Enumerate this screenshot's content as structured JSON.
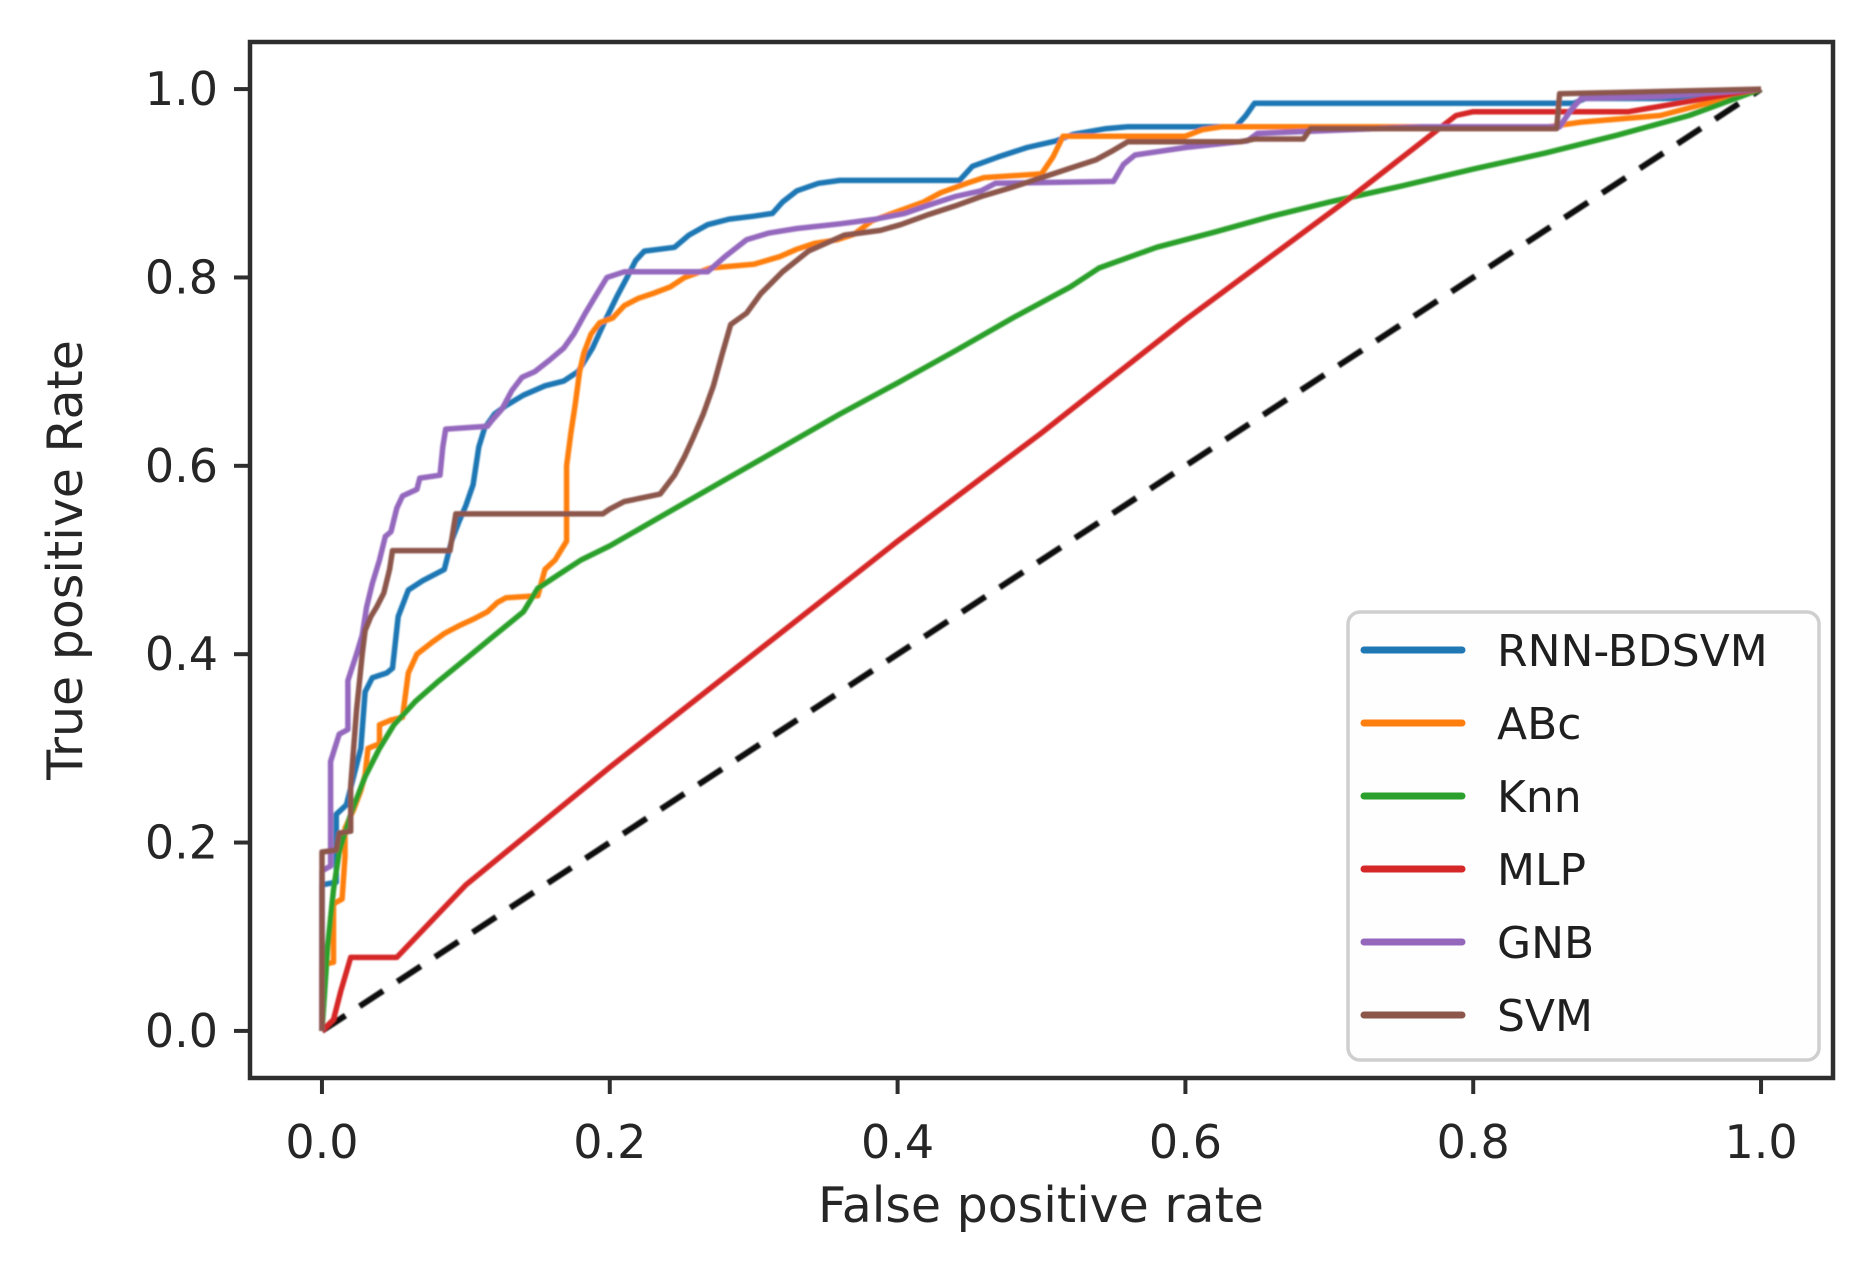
{
  "figure": {
    "xlabel": "False positive rate",
    "ylabel": "True positive Rate",
    "x_tick_labels": [
      "0.0",
      "0.2",
      "0.4",
      "0.6",
      "0.8",
      "1.0"
    ],
    "y_tick_labels": [
      "0.0",
      "0.2",
      "0.4",
      "0.6",
      "0.8",
      "1.0"
    ]
  },
  "legend": {
    "entries": [
      {
        "label": "RNN-BDSVM",
        "color": "#1f77b4",
        "style": "solid"
      },
      {
        "label": "ABc",
        "color": "#ff7f0e",
        "style": "solid"
      },
      {
        "label": "Knn",
        "color": "#2ca02c",
        "style": "solid"
      },
      {
        "label": "MLP",
        "color": "#d62728",
        "style": "solid"
      },
      {
        "label": "GNB",
        "color": "#9467bd",
        "style": "solid"
      },
      {
        "label": "SVM",
        "color": "#8c564b",
        "style": "solid"
      }
    ]
  },
  "chart_data": {
    "type": "line",
    "title": "",
    "xlabel": "False positive rate",
    "ylabel": "True positive Rate",
    "xlim": [
      -0.05,
      1.05
    ],
    "ylim": [
      -0.05,
      1.05
    ],
    "x_ticks": [
      0.0,
      0.2,
      0.4,
      0.6,
      0.8,
      1.0
    ],
    "y_ticks": [
      0.0,
      0.2,
      0.4,
      0.6,
      0.8,
      1.0
    ],
    "grid": false,
    "legend_position": "lower right",
    "series": [
      {
        "name": "chance-diagonal",
        "color": "#111111",
        "style": "dashed",
        "in_legend": false,
        "points": [
          [
            0,
            0
          ],
          [
            1,
            1
          ]
        ]
      },
      {
        "name": "RNN-BDSVM",
        "color": "#1f77b4",
        "style": "solid",
        "in_legend": true,
        "points": [
          [
            0,
            0
          ],
          [
            0,
            0.155
          ],
          [
            0.01,
            0.158
          ],
          [
            0.01,
            0.23
          ],
          [
            0.017,
            0.24
          ],
          [
            0.022,
            0.27
          ],
          [
            0.027,
            0.3
          ],
          [
            0.03,
            0.36
          ],
          [
            0.035,
            0.375
          ],
          [
            0.045,
            0.38
          ],
          [
            0.049,
            0.385
          ],
          [
            0.053,
            0.44
          ],
          [
            0.06,
            0.468
          ],
          [
            0.07,
            0.478
          ],
          [
            0.085,
            0.49
          ],
          [
            0.09,
            0.52
          ],
          [
            0.095,
            0.54
          ],
          [
            0.1,
            0.558
          ],
          [
            0.105,
            0.58
          ],
          [
            0.109,
            0.62
          ],
          [
            0.113,
            0.64
          ],
          [
            0.12,
            0.655
          ],
          [
            0.128,
            0.664
          ],
          [
            0.14,
            0.675
          ],
          [
            0.155,
            0.685
          ],
          [
            0.168,
            0.69
          ],
          [
            0.178,
            0.7
          ],
          [
            0.188,
            0.725
          ],
          [
            0.197,
            0.755
          ],
          [
            0.205,
            0.78
          ],
          [
            0.212,
            0.8
          ],
          [
            0.218,
            0.818
          ],
          [
            0.224,
            0.828
          ],
          [
            0.245,
            0.832
          ],
          [
            0.255,
            0.845
          ],
          [
            0.268,
            0.856
          ],
          [
            0.283,
            0.862
          ],
          [
            0.3,
            0.865
          ],
          [
            0.313,
            0.868
          ],
          [
            0.32,
            0.88
          ],
          [
            0.33,
            0.892
          ],
          [
            0.345,
            0.9
          ],
          [
            0.36,
            0.903
          ],
          [
            0.443,
            0.903
          ],
          [
            0.452,
            0.918
          ],
          [
            0.47,
            0.928
          ],
          [
            0.49,
            0.938
          ],
          [
            0.51,
            0.945
          ],
          [
            0.522,
            0.952
          ],
          [
            0.545,
            0.958
          ],
          [
            0.56,
            0.96
          ],
          [
            0.635,
            0.96
          ],
          [
            0.642,
            0.972
          ],
          [
            0.648,
            0.985
          ],
          [
            0.87,
            0.985
          ],
          [
            0.878,
            0.99
          ],
          [
            0.955,
            0.99
          ],
          [
            1,
            1
          ]
        ]
      },
      {
        "name": "ABc",
        "color": "#ff7f0e",
        "style": "solid",
        "in_legend": true,
        "points": [
          [
            0,
            0
          ],
          [
            0,
            0.07
          ],
          [
            0.008,
            0.073
          ],
          [
            0.008,
            0.135
          ],
          [
            0.014,
            0.14
          ],
          [
            0.016,
            0.185
          ],
          [
            0.016,
            0.215
          ],
          [
            0.022,
            0.235
          ],
          [
            0.027,
            0.255
          ],
          [
            0.03,
            0.272
          ],
          [
            0.032,
            0.3
          ],
          [
            0.04,
            0.305
          ],
          [
            0.04,
            0.325
          ],
          [
            0.048,
            0.33
          ],
          [
            0.056,
            0.333
          ],
          [
            0.06,
            0.38
          ],
          [
            0.066,
            0.4
          ],
          [
            0.076,
            0.412
          ],
          [
            0.085,
            0.422
          ],
          [
            0.095,
            0.43
          ],
          [
            0.105,
            0.437
          ],
          [
            0.115,
            0.445
          ],
          [
            0.122,
            0.455
          ],
          [
            0.128,
            0.46
          ],
          [
            0.15,
            0.462
          ],
          [
            0.155,
            0.49
          ],
          [
            0.162,
            0.5
          ],
          [
            0.166,
            0.51
          ],
          [
            0.17,
            0.52
          ],
          [
            0.17,
            0.6
          ],
          [
            0.173,
            0.635
          ],
          [
            0.176,
            0.665
          ],
          [
            0.179,
            0.7
          ],
          [
            0.182,
            0.72
          ],
          [
            0.187,
            0.74
          ],
          [
            0.193,
            0.752
          ],
          [
            0.202,
            0.757
          ],
          [
            0.21,
            0.77
          ],
          [
            0.22,
            0.778
          ],
          [
            0.23,
            0.783
          ],
          [
            0.242,
            0.79
          ],
          [
            0.252,
            0.8
          ],
          [
            0.27,
            0.81
          ],
          [
            0.3,
            0.814
          ],
          [
            0.318,
            0.822
          ],
          [
            0.33,
            0.83
          ],
          [
            0.342,
            0.836
          ],
          [
            0.358,
            0.84
          ],
          [
            0.37,
            0.846
          ],
          [
            0.382,
            0.86
          ],
          [
            0.4,
            0.87
          ],
          [
            0.418,
            0.88
          ],
          [
            0.43,
            0.89
          ],
          [
            0.448,
            0.9
          ],
          [
            0.46,
            0.906
          ],
          [
            0.5,
            0.91
          ],
          [
            0.508,
            0.928
          ],
          [
            0.515,
            0.95
          ],
          [
            0.6,
            0.95
          ],
          [
            0.612,
            0.957
          ],
          [
            0.625,
            0.96
          ],
          [
            0.852,
            0.96
          ],
          [
            0.875,
            0.965
          ],
          [
            0.93,
            0.972
          ],
          [
            1,
            1
          ]
        ]
      },
      {
        "name": "Knn",
        "color": "#2ca02c",
        "style": "solid",
        "in_legend": true,
        "points": [
          [
            0,
            0
          ],
          [
            0.004,
            0.09
          ],
          [
            0.008,
            0.15
          ],
          [
            0.012,
            0.19
          ],
          [
            0.02,
            0.23
          ],
          [
            0.03,
            0.27
          ],
          [
            0.04,
            0.3
          ],
          [
            0.05,
            0.325
          ],
          [
            0.065,
            0.35
          ],
          [
            0.08,
            0.37
          ],
          [
            0.1,
            0.395
          ],
          [
            0.12,
            0.42
          ],
          [
            0.14,
            0.445
          ],
          [
            0.15,
            0.47
          ],
          [
            0.165,
            0.485
          ],
          [
            0.18,
            0.5
          ],
          [
            0.2,
            0.515
          ],
          [
            0.24,
            0.55
          ],
          [
            0.28,
            0.585
          ],
          [
            0.32,
            0.62
          ],
          [
            0.36,
            0.655
          ],
          [
            0.4,
            0.688
          ],
          [
            0.44,
            0.722
          ],
          [
            0.48,
            0.757
          ],
          [
            0.52,
            0.79
          ],
          [
            0.54,
            0.81
          ],
          [
            0.58,
            0.832
          ],
          [
            0.62,
            0.848
          ],
          [
            0.66,
            0.865
          ],
          [
            0.7,
            0.88
          ],
          [
            0.75,
            0.897
          ],
          [
            0.8,
            0.915
          ],
          [
            0.85,
            0.932
          ],
          [
            0.9,
            0.951
          ],
          [
            0.95,
            0.972
          ],
          [
            1,
            1
          ]
        ]
      },
      {
        "name": "MLP",
        "color": "#d62728",
        "style": "solid",
        "in_legend": true,
        "points": [
          [
            0,
            0
          ],
          [
            0.008,
            0.012
          ],
          [
            0.013,
            0.042
          ],
          [
            0.02,
            0.078
          ],
          [
            0.052,
            0.078
          ],
          [
            0.1,
            0.155
          ],
          [
            0.2,
            0.28
          ],
          [
            0.3,
            0.4
          ],
          [
            0.4,
            0.52
          ],
          [
            0.5,
            0.635
          ],
          [
            0.6,
            0.755
          ],
          [
            0.714,
            0.884
          ],
          [
            0.788,
            0.972
          ],
          [
            0.8,
            0.976
          ],
          [
            0.908,
            0.976
          ],
          [
            1,
            1
          ]
        ]
      },
      {
        "name": "GNB",
        "color": "#9467bd",
        "style": "solid",
        "in_legend": true,
        "points": [
          [
            0,
            0
          ],
          [
            0,
            0.17
          ],
          [
            0.006,
            0.175
          ],
          [
            0.006,
            0.286
          ],
          [
            0.012,
            0.315
          ],
          [
            0.018,
            0.32
          ],
          [
            0.018,
            0.372
          ],
          [
            0.024,
            0.4
          ],
          [
            0.028,
            0.42
          ],
          [
            0.031,
            0.45
          ],
          [
            0.035,
            0.475
          ],
          [
            0.04,
            0.5
          ],
          [
            0.044,
            0.525
          ],
          [
            0.048,
            0.53
          ],
          [
            0.052,
            0.555
          ],
          [
            0.056,
            0.568
          ],
          [
            0.066,
            0.575
          ],
          [
            0.068,
            0.587
          ],
          [
            0.082,
            0.59
          ],
          [
            0.084,
            0.62
          ],
          [
            0.086,
            0.639
          ],
          [
            0.115,
            0.642
          ],
          [
            0.118,
            0.648
          ],
          [
            0.125,
            0.66
          ],
          [
            0.132,
            0.68
          ],
          [
            0.139,
            0.694
          ],
          [
            0.148,
            0.7
          ],
          [
            0.158,
            0.712
          ],
          [
            0.168,
            0.725
          ],
          [
            0.175,
            0.74
          ],
          [
            0.183,
            0.762
          ],
          [
            0.19,
            0.78
          ],
          [
            0.198,
            0.8
          ],
          [
            0.21,
            0.806
          ],
          [
            0.268,
            0.806
          ],
          [
            0.28,
            0.822
          ],
          [
            0.295,
            0.84
          ],
          [
            0.31,
            0.847
          ],
          [
            0.33,
            0.852
          ],
          [
            0.36,
            0.857
          ],
          [
            0.385,
            0.862
          ],
          [
            0.405,
            0.868
          ],
          [
            0.42,
            0.876
          ],
          [
            0.44,
            0.886
          ],
          [
            0.458,
            0.892
          ],
          [
            0.468,
            0.9
          ],
          [
            0.55,
            0.902
          ],
          [
            0.557,
            0.92
          ],
          [
            0.565,
            0.93
          ],
          [
            0.6,
            0.938
          ],
          [
            0.643,
            0.945
          ],
          [
            0.65,
            0.953
          ],
          [
            0.7,
            0.956
          ],
          [
            0.765,
            0.96
          ],
          [
            0.86,
            0.96
          ],
          [
            0.868,
            0.978
          ],
          [
            0.875,
            0.99
          ],
          [
            0.93,
            0.992
          ],
          [
            1,
            1
          ]
        ]
      },
      {
        "name": "SVM",
        "color": "#8c564b",
        "style": "solid",
        "in_legend": true,
        "points": [
          [
            0,
            0
          ],
          [
            0,
            0.19
          ],
          [
            0.01,
            0.192
          ],
          [
            0.012,
            0.21
          ],
          [
            0.02,
            0.212
          ],
          [
            0.02,
            0.26
          ],
          [
            0.022,
            0.3
          ],
          [
            0.024,
            0.34
          ],
          [
            0.026,
            0.37
          ],
          [
            0.028,
            0.4
          ],
          [
            0.03,
            0.425
          ],
          [
            0.034,
            0.44
          ],
          [
            0.038,
            0.45
          ],
          [
            0.043,
            0.465
          ],
          [
            0.047,
            0.49
          ],
          [
            0.049,
            0.51
          ],
          [
            0.089,
            0.51
          ],
          [
            0.093,
            0.549
          ],
          [
            0.195,
            0.549
          ],
          [
            0.2,
            0.554
          ],
          [
            0.21,
            0.562
          ],
          [
            0.235,
            0.57
          ],
          [
            0.245,
            0.59
          ],
          [
            0.252,
            0.61
          ],
          [
            0.258,
            0.63
          ],
          [
            0.265,
            0.655
          ],
          [
            0.272,
            0.685
          ],
          [
            0.278,
            0.718
          ],
          [
            0.284,
            0.75
          ],
          [
            0.295,
            0.762
          ],
          [
            0.305,
            0.783
          ],
          [
            0.32,
            0.806
          ],
          [
            0.338,
            0.828
          ],
          [
            0.363,
            0.845
          ],
          [
            0.388,
            0.85
          ],
          [
            0.402,
            0.856
          ],
          [
            0.42,
            0.866
          ],
          [
            0.44,
            0.876
          ],
          [
            0.458,
            0.886
          ],
          [
            0.478,
            0.895
          ],
          [
            0.498,
            0.905
          ],
          [
            0.518,
            0.915
          ],
          [
            0.538,
            0.925
          ],
          [
            0.55,
            0.935
          ],
          [
            0.56,
            0.944
          ],
          [
            0.638,
            0.944
          ],
          [
            0.648,
            0.947
          ],
          [
            0.682,
            0.947
          ],
          [
            0.687,
            0.958
          ],
          [
            0.858,
            0.958
          ],
          [
            0.86,
            0.995
          ],
          [
            1,
            1
          ]
        ]
      }
    ]
  }
}
